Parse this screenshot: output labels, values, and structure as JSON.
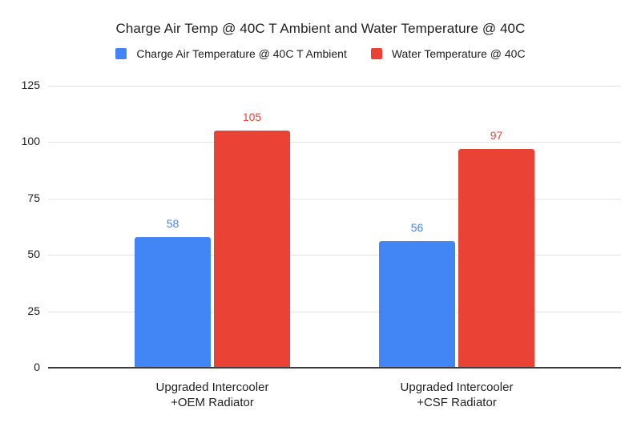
{
  "title": "Charge Air Temp @ 40C T Ambient and Water Temperature @ 40C",
  "legend": {
    "items": [
      {
        "label": "Charge Air Temperature @ 40C T Ambient",
        "color": "#4285F4"
      },
      {
        "label": "Water Temperature @ 40C",
        "color": "#EA4335"
      }
    ]
  },
  "chart_data": {
    "type": "bar",
    "title": "Charge Air Temp @ 40C T Ambient and Water Temperature @ 40C",
    "categories": [
      "Upgraded Intercooler\n+OEM Radiator",
      "Upgraded Intercooler\n+CSF Radiator"
    ],
    "series": [
      {
        "name": "Charge Air Temperature @ 40C T Ambient",
        "color": "#4285F4",
        "values": [
          58,
          56
        ]
      },
      {
        "name": "Water Temperature @ 40C",
        "color": "#EA4335",
        "values": [
          105,
          97
        ]
      }
    ],
    "xlabel": "",
    "ylabel": "",
    "ylim": [
      0,
      125
    ],
    "y_ticks": [
      0,
      25,
      50,
      75,
      100,
      125
    ],
    "grid": true,
    "legend_position": "top",
    "data_labels": true
  },
  "colors": {
    "background": "#ffffff",
    "gridline": "#e3e3e3",
    "baseline": "#3c3c3c",
    "text": "#1f1f1f",
    "series_blue": "#4285F4",
    "series_red": "#EA4335"
  }
}
